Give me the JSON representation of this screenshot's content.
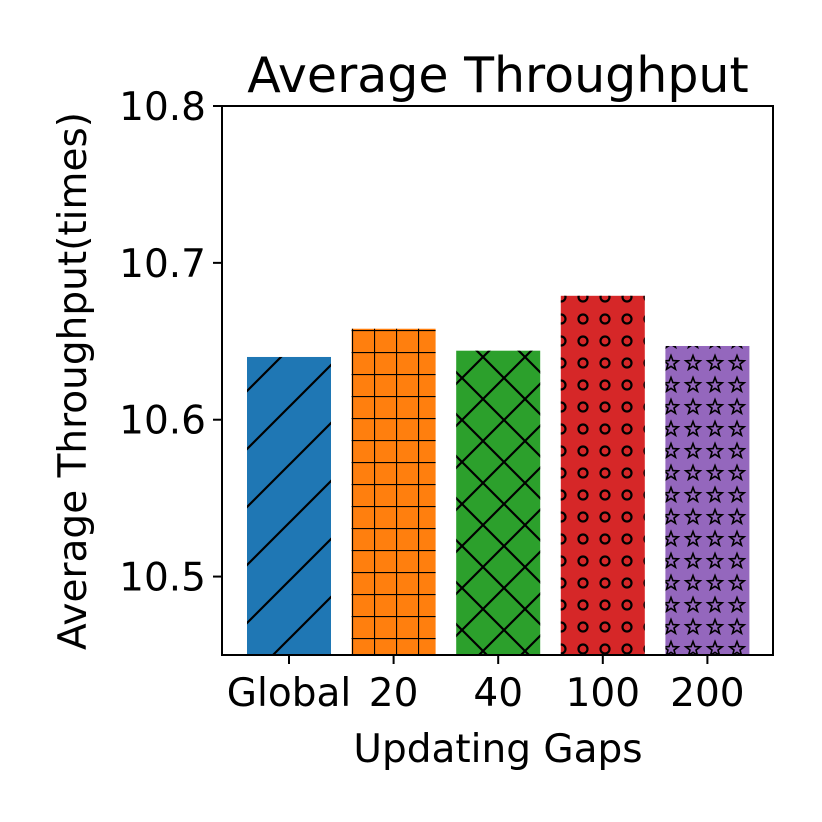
{
  "chart_data": {
    "type": "bar",
    "title": "Average Throughput",
    "xlabel": "Updating Gaps",
    "ylabel": "Average Throughput(times)",
    "categories": [
      "Global",
      "20",
      "40",
      "100",
      "200"
    ],
    "values": [
      10.64,
      10.658,
      10.644,
      10.679,
      10.647
    ],
    "ylim": [
      10.45,
      10.8
    ],
    "yticks": [
      "10.5",
      "10.6",
      "10.7",
      "10.8"
    ],
    "colors": [
      "#1f77b4",
      "#ff7f0e",
      "#2ca02c",
      "#d62728",
      "#9467bd"
    ],
    "hatches": [
      "diagonal",
      "grid",
      "crosshatch",
      "circles",
      "stars"
    ],
    "grid": false,
    "legend": "none"
  }
}
